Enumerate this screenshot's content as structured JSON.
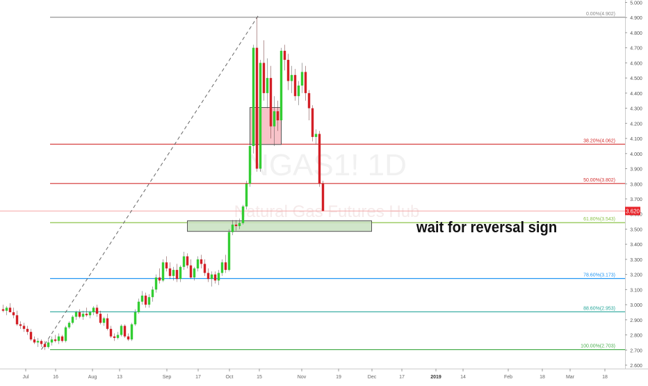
{
  "symbol_watermark": "NGAS1! 1D",
  "name_watermark": "Natural Gas Futures Hub",
  "annotation_text": "wait for reversal sign",
  "price_label": "3.620",
  "colors": {
    "up": "#32cd32",
    "down": "#d31f26",
    "price_line": "#f4a6a6",
    "price_tag": "#e8242a"
  },
  "chart_data": {
    "type": "candlestick",
    "title": "",
    "xlabel": "",
    "ylabel": "",
    "ylim": [
      2.6,
      5.0
    ],
    "grid": false,
    "x_ticks": [
      "Jul",
      "16",
      "Aug",
      "13",
      "Sep",
      "17",
      "Oct",
      "15",
      "Nov",
      "19",
      "Dec",
      "17",
      "2019",
      "14",
      "Feb",
      "18",
      "Mar",
      "18"
    ],
    "y_ticks": [
      "5.000",
      "4.900",
      "4.800",
      "4.700",
      "4.600",
      "4.500",
      "4.400",
      "4.300",
      "4.200",
      "4.100",
      "4.000",
      "3.900",
      "3.800",
      "3.700",
      "3.600",
      "3.500",
      "3.400",
      "3.300",
      "3.200",
      "3.100",
      "3.000",
      "2.900",
      "2.800",
      "2.700",
      "2.600"
    ],
    "current_price": 3.62,
    "fib_levels": [
      {
        "label": "0.00%(4.902)",
        "value": 4.902,
        "color": "#888888"
      },
      {
        "label": "38.20%(4.062)",
        "value": 4.062,
        "color": "#d32f2f"
      },
      {
        "label": "50.00%(3.802)",
        "value": 3.802,
        "color": "#d32f2f"
      },
      {
        "label": "61.80%(3.543)",
        "value": 3.543,
        "color": "#8bc34a"
      },
      {
        "label": "78.60%(3.173)",
        "value": 3.173,
        "color": "#2196f3"
      },
      {
        "label": "88.60%(2.953)",
        "value": 2.953,
        "color": "#26a69a"
      },
      {
        "label": "100.00%(2.703)",
        "value": 2.703,
        "color": "#4caf50"
      }
    ],
    "trend_line": {
      "from": {
        "bar": 10,
        "price": 2.703
      },
      "to": {
        "bar": 70,
        "price": 4.902
      }
    },
    "zones": [
      {
        "name": "resistance-zone",
        "bar_from": 71,
        "bar_to": 80,
        "price_top": 4.305,
        "price_bottom": 4.06,
        "fill": "#f7b9bf",
        "stroke": "#555555"
      },
      {
        "name": "support-zone",
        "bar_from": 53,
        "bar_to": 106,
        "price_top": 3.555,
        "price_bottom": 3.485,
        "fill": "#c8e0c0",
        "stroke": "#555555"
      }
    ],
    "candles": [
      {
        "o": 2.97,
        "h": 3.0,
        "l": 2.95,
        "c": 2.96
      },
      {
        "o": 2.96,
        "h": 2.99,
        "l": 2.93,
        "c": 2.98
      },
      {
        "o": 2.98,
        "h": 3.01,
        "l": 2.95,
        "c": 2.95
      },
      {
        "o": 2.95,
        "h": 2.98,
        "l": 2.91,
        "c": 2.93
      },
      {
        "o": 2.93,
        "h": 2.96,
        "l": 2.86,
        "c": 2.87
      },
      {
        "o": 2.87,
        "h": 2.89,
        "l": 2.84,
        "c": 2.86
      },
      {
        "o": 2.86,
        "h": 2.88,
        "l": 2.82,
        "c": 2.84
      },
      {
        "o": 2.84,
        "h": 2.86,
        "l": 2.8,
        "c": 2.82
      },
      {
        "o": 2.82,
        "h": 2.84,
        "l": 2.76,
        "c": 2.77
      },
      {
        "o": 2.77,
        "h": 2.79,
        "l": 2.74,
        "c": 2.75
      },
      {
        "o": 2.75,
        "h": 2.78,
        "l": 2.72,
        "c": 2.76
      },
      {
        "o": 2.76,
        "h": 2.77,
        "l": 2.72,
        "c": 2.74
      },
      {
        "o": 2.74,
        "h": 2.76,
        "l": 2.7,
        "c": 2.72
      },
      {
        "o": 2.72,
        "h": 2.77,
        "l": 2.71,
        "c": 2.75
      },
      {
        "o": 2.75,
        "h": 2.79,
        "l": 2.73,
        "c": 2.77
      },
      {
        "o": 2.77,
        "h": 2.8,
        "l": 2.75,
        "c": 2.76
      },
      {
        "o": 2.76,
        "h": 2.81,
        "l": 2.74,
        "c": 2.79
      },
      {
        "o": 2.79,
        "h": 2.8,
        "l": 2.75,
        "c": 2.76
      },
      {
        "o": 2.76,
        "h": 2.86,
        "l": 2.75,
        "c": 2.85
      },
      {
        "o": 2.85,
        "h": 2.89,
        "l": 2.84,
        "c": 2.88
      },
      {
        "o": 2.88,
        "h": 2.93,
        "l": 2.87,
        "c": 2.92
      },
      {
        "o": 2.92,
        "h": 2.96,
        "l": 2.9,
        "c": 2.95
      },
      {
        "o": 2.95,
        "h": 2.97,
        "l": 2.91,
        "c": 2.92
      },
      {
        "o": 2.92,
        "h": 2.96,
        "l": 2.9,
        "c": 2.94
      },
      {
        "o": 2.94,
        "h": 2.98,
        "l": 2.92,
        "c": 2.93
      },
      {
        "o": 2.93,
        "h": 2.96,
        "l": 2.91,
        "c": 2.95
      },
      {
        "o": 2.95,
        "h": 2.99,
        "l": 2.93,
        "c": 2.98
      },
      {
        "o": 2.98,
        "h": 3.0,
        "l": 2.92,
        "c": 2.94
      },
      {
        "o": 2.94,
        "h": 2.96,
        "l": 2.87,
        "c": 2.88
      },
      {
        "o": 2.88,
        "h": 2.92,
        "l": 2.86,
        "c": 2.91
      },
      {
        "o": 2.91,
        "h": 2.94,
        "l": 2.83,
        "c": 2.84
      },
      {
        "o": 2.84,
        "h": 2.86,
        "l": 2.78,
        "c": 2.79
      },
      {
        "o": 2.79,
        "h": 2.81,
        "l": 2.76,
        "c": 2.78
      },
      {
        "o": 2.78,
        "h": 2.82,
        "l": 2.77,
        "c": 2.8
      },
      {
        "o": 2.8,
        "h": 2.87,
        "l": 2.79,
        "c": 2.86
      },
      {
        "o": 2.86,
        "h": 2.87,
        "l": 2.78,
        "c": 2.79
      },
      {
        "o": 2.79,
        "h": 2.81,
        "l": 2.76,
        "c": 2.77
      },
      {
        "o": 2.77,
        "h": 2.88,
        "l": 2.76,
        "c": 2.87
      },
      {
        "o": 2.87,
        "h": 2.97,
        "l": 2.86,
        "c": 2.95
      },
      {
        "o": 2.95,
        "h": 3.04,
        "l": 2.94,
        "c": 3.02
      },
      {
        "o": 3.02,
        "h": 3.09,
        "l": 3.0,
        "c": 3.06
      },
      {
        "o": 3.06,
        "h": 3.08,
        "l": 2.98,
        "c": 3.0
      },
      {
        "o": 3.0,
        "h": 3.07,
        "l": 2.98,
        "c": 3.05
      },
      {
        "o": 3.05,
        "h": 3.12,
        "l": 3.02,
        "c": 3.1
      },
      {
        "o": 3.1,
        "h": 3.2,
        "l": 3.08,
        "c": 3.18
      },
      {
        "o": 3.18,
        "h": 3.24,
        "l": 3.14,
        "c": 3.16
      },
      {
        "o": 3.16,
        "h": 3.3,
        "l": 3.15,
        "c": 3.28
      },
      {
        "o": 3.28,
        "h": 3.32,
        "l": 3.22,
        "c": 3.24
      },
      {
        "o": 3.24,
        "h": 3.28,
        "l": 3.17,
        "c": 3.19
      },
      {
        "o": 3.19,
        "h": 3.25,
        "l": 3.16,
        "c": 3.23
      },
      {
        "o": 3.23,
        "h": 3.27,
        "l": 3.15,
        "c": 3.17
      },
      {
        "o": 3.17,
        "h": 3.26,
        "l": 3.15,
        "c": 3.25
      },
      {
        "o": 3.25,
        "h": 3.35,
        "l": 3.23,
        "c": 3.32
      },
      {
        "o": 3.32,
        "h": 3.34,
        "l": 3.24,
        "c": 3.26
      },
      {
        "o": 3.26,
        "h": 3.3,
        "l": 3.17,
        "c": 3.18
      },
      {
        "o": 3.18,
        "h": 3.25,
        "l": 3.16,
        "c": 3.24
      },
      {
        "o": 3.24,
        "h": 3.32,
        "l": 3.22,
        "c": 3.3
      },
      {
        "o": 3.3,
        "h": 3.33,
        "l": 3.24,
        "c": 3.27
      },
      {
        "o": 3.27,
        "h": 3.3,
        "l": 3.19,
        "c": 3.21
      },
      {
        "o": 3.21,
        "h": 3.24,
        "l": 3.15,
        "c": 3.17
      },
      {
        "o": 3.17,
        "h": 3.22,
        "l": 3.12,
        "c": 3.2
      },
      {
        "o": 3.2,
        "h": 3.22,
        "l": 3.14,
        "c": 3.16
      },
      {
        "o": 3.16,
        "h": 3.23,
        "l": 3.13,
        "c": 3.21
      },
      {
        "o": 3.21,
        "h": 3.3,
        "l": 3.19,
        "c": 3.28
      },
      {
        "o": 3.28,
        "h": 3.33,
        "l": 3.21,
        "c": 3.23
      },
      {
        "o": 3.23,
        "h": 3.5,
        "l": 3.22,
        "c": 3.48
      },
      {
        "o": 3.48,
        "h": 3.56,
        "l": 3.46,
        "c": 3.53
      },
      {
        "o": 3.53,
        "h": 3.56,
        "l": 3.49,
        "c": 3.52
      },
      {
        "o": 3.52,
        "h": 3.57,
        "l": 3.5,
        "c": 3.54
      },
      {
        "o": 3.54,
        "h": 3.66,
        "l": 3.53,
        "c": 3.65
      },
      {
        "o": 3.65,
        "h": 3.82,
        "l": 3.63,
        "c": 3.8
      },
      {
        "o": 3.8,
        "h": 4.08,
        "l": 3.78,
        "c": 4.05
      },
      {
        "o": 4.05,
        "h": 4.72,
        "l": 4.0,
        "c": 4.7
      },
      {
        "o": 4.7,
        "h": 4.9,
        "l": 3.88,
        "c": 3.9
      },
      {
        "o": 3.9,
        "h": 4.62,
        "l": 3.88,
        "c": 4.6
      },
      {
        "o": 4.6,
        "h": 4.75,
        "l": 4.35,
        "c": 4.4
      },
      {
        "o": 4.4,
        "h": 4.63,
        "l": 4.3,
        "c": 4.5
      },
      {
        "o": 4.5,
        "h": 4.58,
        "l": 4.1,
        "c": 4.18
      },
      {
        "o": 4.18,
        "h": 4.38,
        "l": 4.05,
        "c": 4.28
      },
      {
        "o": 4.28,
        "h": 4.35,
        "l": 4.15,
        "c": 4.22
      },
      {
        "o": 4.22,
        "h": 4.7,
        "l": 4.15,
        "c": 4.68
      },
      {
        "o": 4.68,
        "h": 4.72,
        "l": 4.55,
        "c": 4.62
      },
      {
        "o": 4.62,
        "h": 4.66,
        "l": 4.42,
        "c": 4.48
      },
      {
        "o": 4.48,
        "h": 4.58,
        "l": 4.4,
        "c": 4.52
      },
      {
        "o": 4.52,
        "h": 4.56,
        "l": 4.35,
        "c": 4.38
      },
      {
        "o": 4.38,
        "h": 4.48,
        "l": 4.32,
        "c": 4.45
      },
      {
        "o": 4.45,
        "h": 4.6,
        "l": 4.4,
        "c": 4.54
      },
      {
        "o": 4.54,
        "h": 4.58,
        "l": 4.35,
        "c": 4.4
      },
      {
        "o": 4.4,
        "h": 4.42,
        "l": 4.22,
        "c": 4.3
      },
      {
        "o": 4.3,
        "h": 4.32,
        "l": 4.08,
        "c": 4.11
      },
      {
        "o": 4.11,
        "h": 4.16,
        "l": 4.06,
        "c": 4.13
      },
      {
        "o": 4.13,
        "h": 4.15,
        "l": 3.78,
        "c": 3.8
      },
      {
        "o": 3.8,
        "h": 3.82,
        "l": 3.62,
        "c": 3.62
      }
    ]
  }
}
